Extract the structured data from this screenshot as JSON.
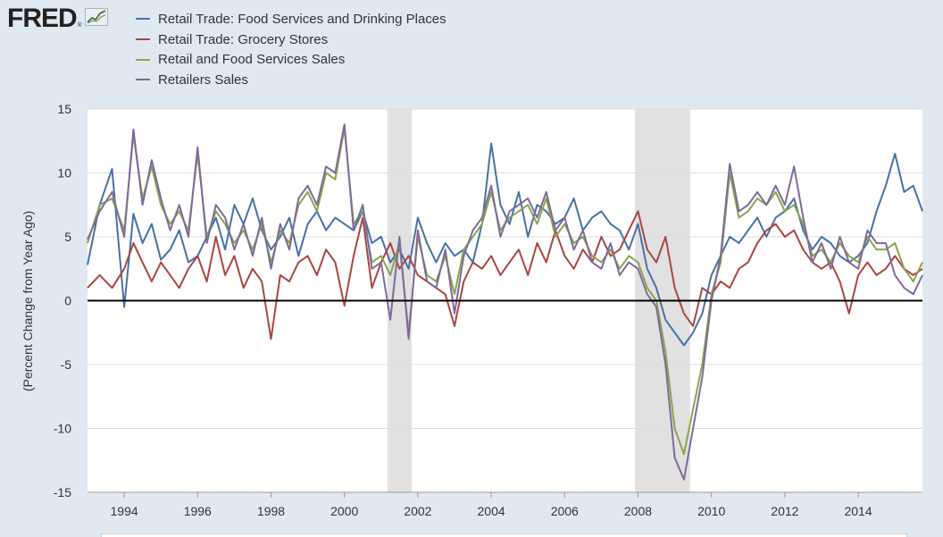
{
  "logo": {
    "text": "FRED",
    "reg": "®",
    "icon": "chart-line-icon"
  },
  "colors": {
    "food": "#4572a7",
    "grocery": "#aa4643",
    "retail_food": "#89a54e",
    "retailers": "#80699b",
    "recession": "#e1e1e1",
    "zero_line": "#000000"
  },
  "chart_data": {
    "type": "line",
    "title": "",
    "xlabel": "",
    "ylabel": "(Percent Change from Year Ago)",
    "ylim": [
      -15,
      15
    ],
    "yticks": [
      -15,
      -10,
      -5,
      0,
      5,
      10,
      15
    ],
    "xlim": [
      1993.0,
      2015.75
    ],
    "xticks": [
      "1994",
      "1996",
      "1998",
      "2000",
      "2002",
      "2004",
      "2006",
      "2008",
      "2010",
      "2012",
      "2014"
    ],
    "grid": "horizontal",
    "legend": "top-left",
    "recessions": [
      [
        2001.17,
        2001.83
      ],
      [
        2007.92,
        2009.42
      ]
    ],
    "series": [
      {
        "name": "Retail Trade: Food Services and Drinking Places",
        "x": [
          1993.0,
          1993.33,
          1993.67,
          1994.0,
          1994.25,
          1994.5,
          1994.75,
          1995.0,
          1995.25,
          1995.5,
          1995.75,
          1996.0,
          1996.25,
          1996.5,
          1996.75,
          1997.0,
          1997.25,
          1997.5,
          1997.75,
          1998.0,
          1998.25,
          1998.5,
          1998.75,
          1999.0,
          1999.25,
          1999.5,
          1999.75,
          2000.0,
          2000.25,
          2000.5,
          2000.75,
          2001.0,
          2001.25,
          2001.5,
          2001.75,
          2002.0,
          2002.25,
          2002.5,
          2002.75,
          2003.0,
          2003.25,
          2003.5,
          2003.75,
          2004.0,
          2004.25,
          2004.5,
          2004.75,
          2005.0,
          2005.25,
          2005.5,
          2005.75,
          2006.0,
          2006.25,
          2006.5,
          2006.75,
          2007.0,
          2007.25,
          2007.5,
          2007.75,
          2008.0,
          2008.25,
          2008.5,
          2008.75,
          2009.0,
          2009.25,
          2009.5,
          2009.75,
          2010.0,
          2010.25,
          2010.5,
          2010.75,
          2011.0,
          2011.25,
          2011.5,
          2011.75,
          2012.0,
          2012.25,
          2012.5,
          2012.75,
          2013.0,
          2013.25,
          2013.5,
          2013.75,
          2014.0,
          2014.25,
          2014.5,
          2014.75,
          2015.0,
          2015.25,
          2015.5,
          2015.75
        ],
        "values": [
          2.8,
          7.5,
          10.3,
          -0.5,
          6.8,
          4.5,
          6.0,
          3.2,
          4.0,
          5.5,
          3.0,
          3.5,
          5.0,
          6.5,
          4.0,
          7.5,
          6.0,
          8.0,
          5.5,
          4.0,
          5.0,
          6.5,
          3.5,
          6.0,
          7.0,
          5.5,
          6.5,
          6.0,
          5.5,
          7.0,
          4.5,
          5.0,
          3.0,
          4.0,
          2.5,
          6.5,
          4.5,
          3.0,
          4.5,
          3.5,
          4.0,
          3.0,
          6.0,
          12.3,
          7.5,
          6.0,
          8.5,
          5.0,
          7.5,
          7.0,
          6.0,
          6.5,
          8.0,
          5.5,
          6.5,
          7.0,
          6.0,
          5.5,
          4.0,
          6.0,
          2.5,
          1.0,
          -1.5,
          -2.5,
          -3.5,
          -2.5,
          -1.0,
          2.0,
          3.5,
          5.0,
          4.5,
          5.5,
          6.5,
          5.0,
          6.5,
          7.0,
          8.0,
          5.5,
          4.0,
          5.0,
          4.5,
          3.5,
          3.0,
          3.5,
          4.5,
          7.0,
          9.0,
          11.5,
          8.5,
          9.0,
          7.0
        ]
      },
      {
        "name": "Retail Trade: Grocery Stores",
        "x": [
          1993.0,
          1993.33,
          1993.67,
          1994.0,
          1994.25,
          1994.5,
          1994.75,
          1995.0,
          1995.25,
          1995.5,
          1995.75,
          1996.0,
          1996.25,
          1996.5,
          1996.75,
          1997.0,
          1997.25,
          1997.5,
          1997.75,
          1998.0,
          1998.25,
          1998.5,
          1998.75,
          1999.0,
          1999.25,
          1999.5,
          1999.75,
          2000.0,
          2000.25,
          2000.5,
          2000.75,
          2001.0,
          2001.25,
          2001.5,
          2001.75,
          2002.0,
          2002.25,
          2002.5,
          2002.75,
          2003.0,
          2003.25,
          2003.5,
          2003.75,
          2004.0,
          2004.25,
          2004.5,
          2004.75,
          2005.0,
          2005.25,
          2005.5,
          2005.75,
          2006.0,
          2006.25,
          2006.5,
          2006.75,
          2007.0,
          2007.25,
          2007.5,
          2007.75,
          2008.0,
          2008.25,
          2008.5,
          2008.75,
          2009.0,
          2009.25,
          2009.5,
          2009.75,
          2010.0,
          2010.25,
          2010.5,
          2010.75,
          2011.0,
          2011.25,
          2011.5,
          2011.75,
          2012.0,
          2012.25,
          2012.5,
          2012.75,
          2013.0,
          2013.25,
          2013.5,
          2013.75,
          2014.0,
          2014.25,
          2014.5,
          2014.75,
          2015.0,
          2015.25,
          2015.5,
          2015.75
        ],
        "values": [
          1.0,
          2.0,
          1.0,
          2.5,
          4.5,
          3.0,
          1.5,
          3.0,
          2.0,
          1.0,
          2.5,
          3.5,
          1.5,
          5.0,
          2.0,
          3.5,
          1.0,
          2.5,
          1.5,
          -3.0,
          2.0,
          1.5,
          3.0,
          3.5,
          2.0,
          4.0,
          3.0,
          -0.4,
          3.5,
          6.5,
          1.0,
          3.0,
          4.5,
          2.5,
          3.5,
          2.0,
          1.5,
          1.0,
          0.5,
          -2.0,
          1.5,
          3.0,
          2.5,
          3.5,
          2.0,
          3.0,
          4.0,
          2.0,
          4.5,
          3.0,
          5.5,
          3.5,
          2.5,
          4.0,
          3.0,
          5.0,
          3.5,
          4.0,
          5.5,
          7.0,
          4.0,
          3.0,
          5.0,
          1.0,
          -1.0,
          -2.0,
          1.0,
          0.5,
          1.5,
          1.0,
          2.5,
          3.0,
          4.5,
          5.5,
          6.0,
          5.0,
          5.5,
          4.0,
          3.0,
          2.5,
          3.0,
          1.5,
          -1.0,
          2.0,
          3.0,
          2.0,
          2.5,
          3.5,
          2.5,
          2.0,
          2.5
        ]
      },
      {
        "name": "Retail and Food Services Sales",
        "x": [
          1993.0,
          1993.33,
          1993.67,
          1994.0,
          1994.25,
          1994.5,
          1994.75,
          1995.0,
          1995.25,
          1995.5,
          1995.75,
          1996.0,
          1996.25,
          1996.5,
          1996.75,
          1997.0,
          1997.25,
          1997.5,
          1997.75,
          1998.0,
          1998.25,
          1998.5,
          1998.75,
          1999.0,
          1999.25,
          1999.5,
          1999.75,
          2000.0,
          2000.25,
          2000.5,
          2000.75,
          2001.0,
          2001.25,
          2001.5,
          2001.75,
          2002.0,
          2002.25,
          2002.5,
          2002.75,
          2003.0,
          2003.25,
          2003.5,
          2003.75,
          2004.0,
          2004.25,
          2004.5,
          2004.75,
          2005.0,
          2005.25,
          2005.5,
          2005.75,
          2006.0,
          2006.25,
          2006.5,
          2006.75,
          2007.0,
          2007.25,
          2007.5,
          2007.75,
          2008.0,
          2008.25,
          2008.5,
          2008.75,
          2009.0,
          2009.25,
          2009.5,
          2009.75,
          2010.0,
          2010.25,
          2010.5,
          2010.75,
          2011.0,
          2011.25,
          2011.5,
          2011.75,
          2012.0,
          2012.25,
          2012.5,
          2012.75,
          2013.0,
          2013.25,
          2013.5,
          2013.75,
          2014.0,
          2014.25,
          2014.5,
          2014.75,
          2015.0,
          2015.25,
          2015.5,
          2015.75
        ],
        "values": [
          4.5,
          7.5,
          8.0,
          5.5,
          13.0,
          8.0,
          10.5,
          7.5,
          6.0,
          7.0,
          5.5,
          11.5,
          5.0,
          7.0,
          6.0,
          4.5,
          5.5,
          4.0,
          6.0,
          3.0,
          5.5,
          4.5,
          7.5,
          8.5,
          7.0,
          10.0,
          9.5,
          13.5,
          6.0,
          7.0,
          3.0,
          3.5,
          2.0,
          4.5,
          -2.5,
          5.0,
          2.0,
          1.5,
          3.5,
          0.5,
          4.0,
          5.0,
          6.0,
          8.5,
          5.5,
          6.5,
          7.0,
          7.5,
          6.0,
          8.0,
          5.0,
          6.0,
          4.5,
          5.0,
          3.5,
          3.0,
          4.0,
          2.5,
          3.5,
          3.0,
          1.0,
          0.0,
          -4.0,
          -10.0,
          -12.0,
          -8.5,
          -5.0,
          0.5,
          3.0,
          10.0,
          6.5,
          7.0,
          8.0,
          7.5,
          8.5,
          7.0,
          7.5,
          6.0,
          3.5,
          4.0,
          3.0,
          4.5,
          3.5,
          3.0,
          5.0,
          4.0,
          4.0,
          4.5,
          2.5,
          1.5,
          3.0
        ]
      },
      {
        "name": "Retailers Sales",
        "x": [
          1993.0,
          1993.33,
          1993.67,
          1994.0,
          1994.25,
          1994.5,
          1994.75,
          1995.0,
          1995.25,
          1995.5,
          1995.75,
          1996.0,
          1996.25,
          1996.5,
          1996.75,
          1997.0,
          1997.25,
          1997.5,
          1997.75,
          1998.0,
          1998.25,
          1998.5,
          1998.75,
          1999.0,
          1999.25,
          1999.5,
          1999.75,
          2000.0,
          2000.25,
          2000.5,
          2000.75,
          2001.0,
          2001.25,
          2001.5,
          2001.75,
          2002.0,
          2002.25,
          2002.5,
          2002.75,
          2003.0,
          2003.25,
          2003.5,
          2003.75,
          2004.0,
          2004.25,
          2004.5,
          2004.75,
          2005.0,
          2005.25,
          2005.5,
          2005.75,
          2006.0,
          2006.25,
          2006.5,
          2006.75,
          2007.0,
          2007.25,
          2007.5,
          2007.75,
          2008.0,
          2008.25,
          2008.5,
          2008.75,
          2009.0,
          2009.25,
          2009.5,
          2009.75,
          2010.0,
          2010.25,
          2010.5,
          2010.75,
          2011.0,
          2011.25,
          2011.5,
          2011.75,
          2012.0,
          2012.25,
          2012.5,
          2012.75,
          2013.0,
          2013.25,
          2013.5,
          2013.75,
          2014.0,
          2014.25,
          2014.5,
          2014.75,
          2015.0,
          2015.25,
          2015.5,
          2015.75
        ],
        "values": [
          4.8,
          7.0,
          8.5,
          5.0,
          13.4,
          7.5,
          11.0,
          8.0,
          5.5,
          7.5,
          5.0,
          12.0,
          4.5,
          7.5,
          6.5,
          4.0,
          6.0,
          3.5,
          6.5,
          2.5,
          6.0,
          4.0,
          8.0,
          9.0,
          7.5,
          10.5,
          10.0,
          13.8,
          5.5,
          7.5,
          2.5,
          3.0,
          -1.5,
          5.0,
          -3.0,
          5.5,
          1.5,
          1.0,
          4.0,
          -1.0,
          3.5,
          5.5,
          6.5,
          9.0,
          5.0,
          7.0,
          7.5,
          8.0,
          6.5,
          8.5,
          5.5,
          6.5,
          4.0,
          5.5,
          3.0,
          2.5,
          4.5,
          2.0,
          3.0,
          2.5,
          0.5,
          -0.5,
          -5.0,
          -12.3,
          -14.0,
          -10.0,
          -6.0,
          0.0,
          3.5,
          10.7,
          7.0,
          7.5,
          8.5,
          7.5,
          9.0,
          7.5,
          10.5,
          6.5,
          3.0,
          4.5,
          2.5,
          5.0,
          3.0,
          2.5,
          5.5,
          4.5,
          4.5,
          2.0,
          1.0,
          0.5,
          2.0
        ]
      }
    ]
  }
}
